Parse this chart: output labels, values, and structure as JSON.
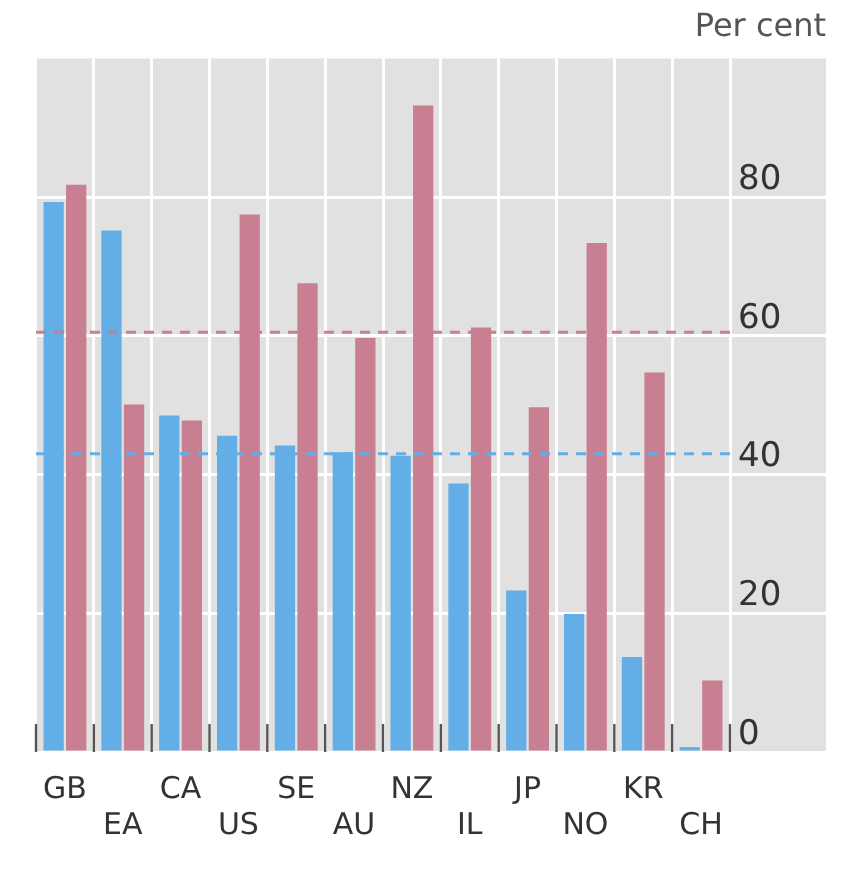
{
  "chart_data": {
    "type": "bar",
    "ylabel": "Per cent",
    "categories": [
      "GB",
      "EA",
      "CA",
      "US",
      "SE",
      "AU",
      "NZ",
      "IL",
      "JP",
      "NO",
      "KR",
      "CH"
    ],
    "series": [
      {
        "color": "#63aee6",
        "values": [
          79.3,
          75.2,
          48.5,
          45.6,
          44.2,
          43.2,
          42.7,
          38.7,
          23.3,
          19.9,
          13.7,
          0.7
        ]
      },
      {
        "color": "#c77f91",
        "values": [
          81.8,
          50.1,
          47.8,
          77.5,
          67.6,
          59.7,
          93.2,
          61.2,
          49.7,
          73.4,
          54.7,
          10.3
        ]
      }
    ],
    "ylim": [
      0,
      100
    ],
    "yticks": [
      0,
      20,
      40,
      60,
      80
    ],
    "grid": true,
    "legend": false,
    "ref_lines": [
      {
        "axis": "y",
        "value": 60.5,
        "color": "#c77f91",
        "line_style": "dashed"
      },
      {
        "axis": "y",
        "value": 43,
        "color": "#63aee6",
        "line_style": "dashed"
      }
    ]
  }
}
